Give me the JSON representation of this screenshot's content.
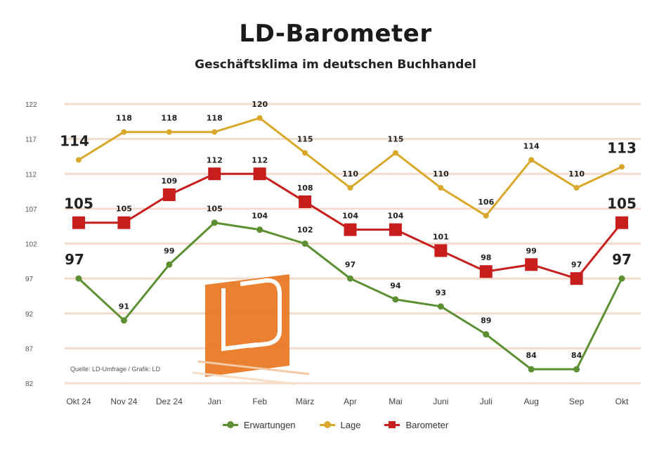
{
  "title": "LD-Barometer",
  "subtitle": "Geschäftsklima im deutschen Buchhandel",
  "source_note": "Quelle: LD-Umfrage / Grafik: LD",
  "chart_data": {
    "type": "line",
    "categories": [
      "Okt 24",
      "Nov 24",
      "Dez 24",
      "Jan",
      "Feb",
      "März",
      "Apr",
      "Mai",
      "Juni",
      "Juli",
      "Aug",
      "Sep",
      "Okt"
    ],
    "ylim": [
      82,
      122
    ],
    "yticks": [
      82,
      87,
      92,
      97,
      102,
      107,
      112,
      117,
      122
    ],
    "grid": true,
    "legend": "bottom",
    "series": [
      {
        "name": "Erwartungen",
        "color": "#5c8f32",
        "values": [
          97,
          91,
          99,
          105,
          104,
          102,
          97,
          94,
          93,
          89,
          84,
          84,
          97
        ],
        "labels": [
          "97",
          "91",
          "99",
          "105",
          "104",
          "102",
          "97",
          "94",
          "93",
          "89",
          "84",
          "84",
          "97"
        ]
      },
      {
        "name": "Lage",
        "color": "#d9a82a",
        "values": [
          114,
          118,
          118,
          118,
          120,
          115,
          110,
          115,
          110,
          106,
          114,
          110,
          113
        ],
        "labels": [
          "114",
          "118",
          "118",
          "118",
          "120",
          "115",
          "110",
          "115",
          "110",
          "106",
          "114",
          "110",
          "113"
        ]
      },
      {
        "name": "Barometer",
        "color": "#c81d1d",
        "values": [
          105,
          105,
          109,
          112,
          112,
          108,
          104,
          104,
          101,
          98,
          99,
          97,
          105
        ],
        "labels": [
          "105",
          "105",
          "109",
          "112",
          "112",
          "108",
          "104",
          "104",
          "101",
          "98",
          "99",
          "97",
          "105"
        ]
      }
    ]
  }
}
